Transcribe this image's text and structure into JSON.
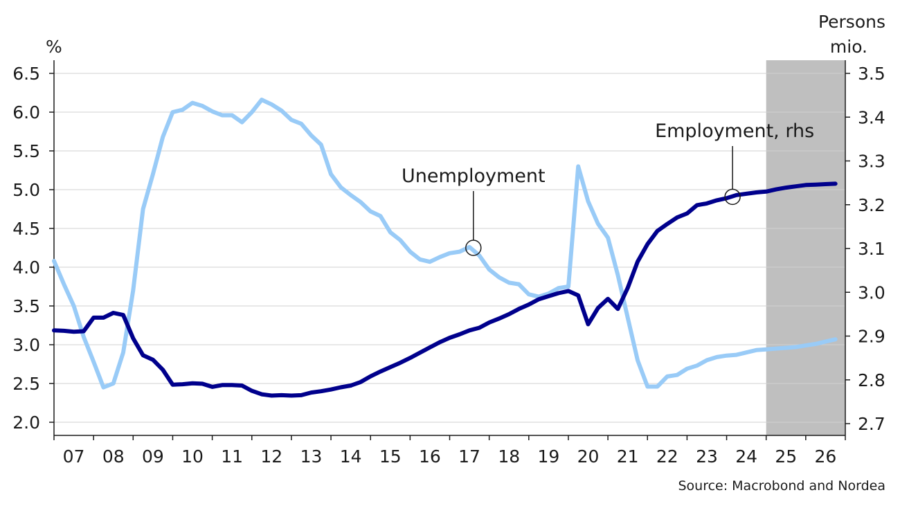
{
  "chart_data": {
    "type": "line",
    "left_unit": "%",
    "right_unit_line1": "Persons",
    "right_unit_line2": "mio.",
    "source": "Source: Macrobond and Nordea",
    "x_labels": [
      "07",
      "08",
      "09",
      "10",
      "11",
      "12",
      "13",
      "14",
      "15",
      "16",
      "17",
      "18",
      "19",
      "20",
      "21",
      "22",
      "23",
      "24",
      "25",
      "26"
    ],
    "y_left": {
      "min": 2.0,
      "max": 6.5,
      "ticks": [
        "2.0",
        "2.5",
        "3.0",
        "3.5",
        "4.0",
        "4.5",
        "5.0",
        "5.5",
        "6.0",
        "6.5"
      ]
    },
    "y_right": {
      "min": 2.7,
      "max": 3.5,
      "ticks": [
        "2.7",
        "2.8",
        "2.9",
        "3.0",
        "3.1",
        "3.2",
        "3.3",
        "3.4",
        "3.5"
      ]
    },
    "x_range": [
      2007.0,
      2027.0
    ],
    "forecast_shade_start": 2025.0,
    "grid": true,
    "series": [
      {
        "name": "Unemployment",
        "axis": "left",
        "color": "#99cbf7",
        "points": [
          [
            2007.0,
            4.08
          ],
          [
            2007.25,
            3.78
          ],
          [
            2007.5,
            3.5
          ],
          [
            2007.75,
            3.1
          ],
          [
            2008.0,
            2.78
          ],
          [
            2008.25,
            2.45
          ],
          [
            2008.5,
            2.5
          ],
          [
            2008.75,
            2.9
          ],
          [
            2009.0,
            3.7
          ],
          [
            2009.25,
            4.75
          ],
          [
            2009.5,
            5.2
          ],
          [
            2009.75,
            5.68
          ],
          [
            2010.0,
            6.0
          ],
          [
            2010.25,
            6.03
          ],
          [
            2010.5,
            6.12
          ],
          [
            2010.75,
            6.08
          ],
          [
            2011.0,
            6.01
          ],
          [
            2011.25,
            5.96
          ],
          [
            2011.5,
            5.96
          ],
          [
            2011.75,
            5.87
          ],
          [
            2012.0,
            6.0
          ],
          [
            2012.25,
            6.16
          ],
          [
            2012.5,
            6.1
          ],
          [
            2012.75,
            6.02
          ],
          [
            2013.0,
            5.9
          ],
          [
            2013.25,
            5.85
          ],
          [
            2013.5,
            5.7
          ],
          [
            2013.75,
            5.58
          ],
          [
            2014.0,
            5.2
          ],
          [
            2014.25,
            5.03
          ],
          [
            2014.5,
            4.93
          ],
          [
            2014.75,
            4.84
          ],
          [
            2015.0,
            4.72
          ],
          [
            2015.25,
            4.66
          ],
          [
            2015.5,
            4.45
          ],
          [
            2015.75,
            4.35
          ],
          [
            2016.0,
            4.2
          ],
          [
            2016.25,
            4.1
          ],
          [
            2016.5,
            4.07
          ],
          [
            2016.75,
            4.13
          ],
          [
            2017.0,
            4.18
          ],
          [
            2017.25,
            4.2
          ],
          [
            2017.5,
            4.26
          ],
          [
            2017.75,
            4.15
          ],
          [
            2018.0,
            3.97
          ],
          [
            2018.25,
            3.87
          ],
          [
            2018.5,
            3.8
          ],
          [
            2018.75,
            3.78
          ],
          [
            2019.0,
            3.65
          ],
          [
            2019.25,
            3.62
          ],
          [
            2019.5,
            3.66
          ],
          [
            2019.75,
            3.73
          ],
          [
            2020.0,
            3.75
          ],
          [
            2020.25,
            5.3
          ],
          [
            2020.5,
            4.85
          ],
          [
            2020.75,
            4.56
          ],
          [
            2021.0,
            4.38
          ],
          [
            2021.25,
            3.9
          ],
          [
            2021.5,
            3.35
          ],
          [
            2021.75,
            2.8
          ],
          [
            2022.0,
            2.46
          ],
          [
            2022.25,
            2.46
          ],
          [
            2022.5,
            2.59
          ],
          [
            2022.75,
            2.61
          ],
          [
            2023.0,
            2.69
          ],
          [
            2023.25,
            2.73
          ],
          [
            2023.5,
            2.8
          ],
          [
            2023.75,
            2.84
          ],
          [
            2024.0,
            2.86
          ],
          [
            2024.25,
            2.87
          ],
          [
            2024.5,
            2.9
          ],
          [
            2024.75,
            2.93
          ],
          [
            2025.0,
            2.94
          ],
          [
            2025.25,
            2.95
          ],
          [
            2025.5,
            2.96
          ],
          [
            2025.75,
            2.97
          ],
          [
            2026.0,
            2.99
          ],
          [
            2026.25,
            3.01
          ],
          [
            2026.5,
            3.04
          ],
          [
            2026.75,
            3.07
          ]
        ]
      },
      {
        "name": "Employment, rhs",
        "axis": "right",
        "color": "#00008c",
        "points": [
          [
            2007.0,
            2.913
          ],
          [
            2007.25,
            2.912
          ],
          [
            2007.5,
            2.91
          ],
          [
            2007.75,
            2.911
          ],
          [
            2008.0,
            2.942
          ],
          [
            2008.25,
            2.942
          ],
          [
            2008.5,
            2.953
          ],
          [
            2008.75,
            2.948
          ],
          [
            2009.0,
            2.895
          ],
          [
            2009.25,
            2.856
          ],
          [
            2009.5,
            2.846
          ],
          [
            2009.75,
            2.823
          ],
          [
            2010.0,
            2.789
          ],
          [
            2010.25,
            2.79
          ],
          [
            2010.5,
            2.792
          ],
          [
            2010.75,
            2.791
          ],
          [
            2011.0,
            2.784
          ],
          [
            2011.25,
            2.788
          ],
          [
            2011.5,
            2.788
          ],
          [
            2011.75,
            2.787
          ],
          [
            2012.0,
            2.775
          ],
          [
            2012.25,
            2.767
          ],
          [
            2012.5,
            2.764
          ],
          [
            2012.75,
            2.765
          ],
          [
            2013.0,
            2.764
          ],
          [
            2013.25,
            2.765
          ],
          [
            2013.5,
            2.771
          ],
          [
            2013.75,
            2.774
          ],
          [
            2014.0,
            2.778
          ],
          [
            2014.25,
            2.783
          ],
          [
            2014.5,
            2.787
          ],
          [
            2014.75,
            2.795
          ],
          [
            2015.0,
            2.808
          ],
          [
            2015.25,
            2.819
          ],
          [
            2015.5,
            2.829
          ],
          [
            2015.75,
            2.839
          ],
          [
            2016.0,
            2.85
          ],
          [
            2016.25,
            2.862
          ],
          [
            2016.5,
            2.874
          ],
          [
            2016.75,
            2.886
          ],
          [
            2017.0,
            2.896
          ],
          [
            2017.25,
            2.904
          ],
          [
            2017.5,
            2.913
          ],
          [
            2017.75,
            2.919
          ],
          [
            2018.0,
            2.931
          ],
          [
            2018.25,
            2.94
          ],
          [
            2018.5,
            2.95
          ],
          [
            2018.75,
            2.962
          ],
          [
            2019.0,
            2.972
          ],
          [
            2019.25,
            2.984
          ],
          [
            2019.5,
            2.991
          ],
          [
            2019.75,
            2.998
          ],
          [
            2020.0,
            3.003
          ],
          [
            2020.25,
            2.993
          ],
          [
            2020.5,
            2.927
          ],
          [
            2020.75,
            2.964
          ],
          [
            2021.0,
            2.985
          ],
          [
            2021.25,
            2.962
          ],
          [
            2021.5,
            3.01
          ],
          [
            2021.75,
            3.07
          ],
          [
            2022.0,
            3.11
          ],
          [
            2022.25,
            3.14
          ],
          [
            2022.5,
            3.156
          ],
          [
            2022.75,
            3.171
          ],
          [
            2023.0,
            3.18
          ],
          [
            2023.25,
            3.199
          ],
          [
            2023.5,
            3.203
          ],
          [
            2023.75,
            3.21
          ],
          [
            2024.0,
            3.215
          ],
          [
            2024.25,
            3.222
          ],
          [
            2024.5,
            3.225
          ],
          [
            2024.75,
            3.228
          ],
          [
            2025.0,
            3.23
          ],
          [
            2025.25,
            3.235
          ],
          [
            2025.5,
            3.239
          ],
          [
            2025.75,
            3.242
          ],
          [
            2026.0,
            3.245
          ],
          [
            2026.25,
            3.246
          ],
          [
            2026.5,
            3.247
          ],
          [
            2026.75,
            3.248
          ]
        ]
      }
    ],
    "annotations": [
      {
        "label": "Unemployment",
        "series": 0,
        "x": 2017.6,
        "y": 4.25
      },
      {
        "label": "Employment, rhs",
        "series": 1,
        "x": 2024.15,
        "y": 3.218
      }
    ]
  }
}
